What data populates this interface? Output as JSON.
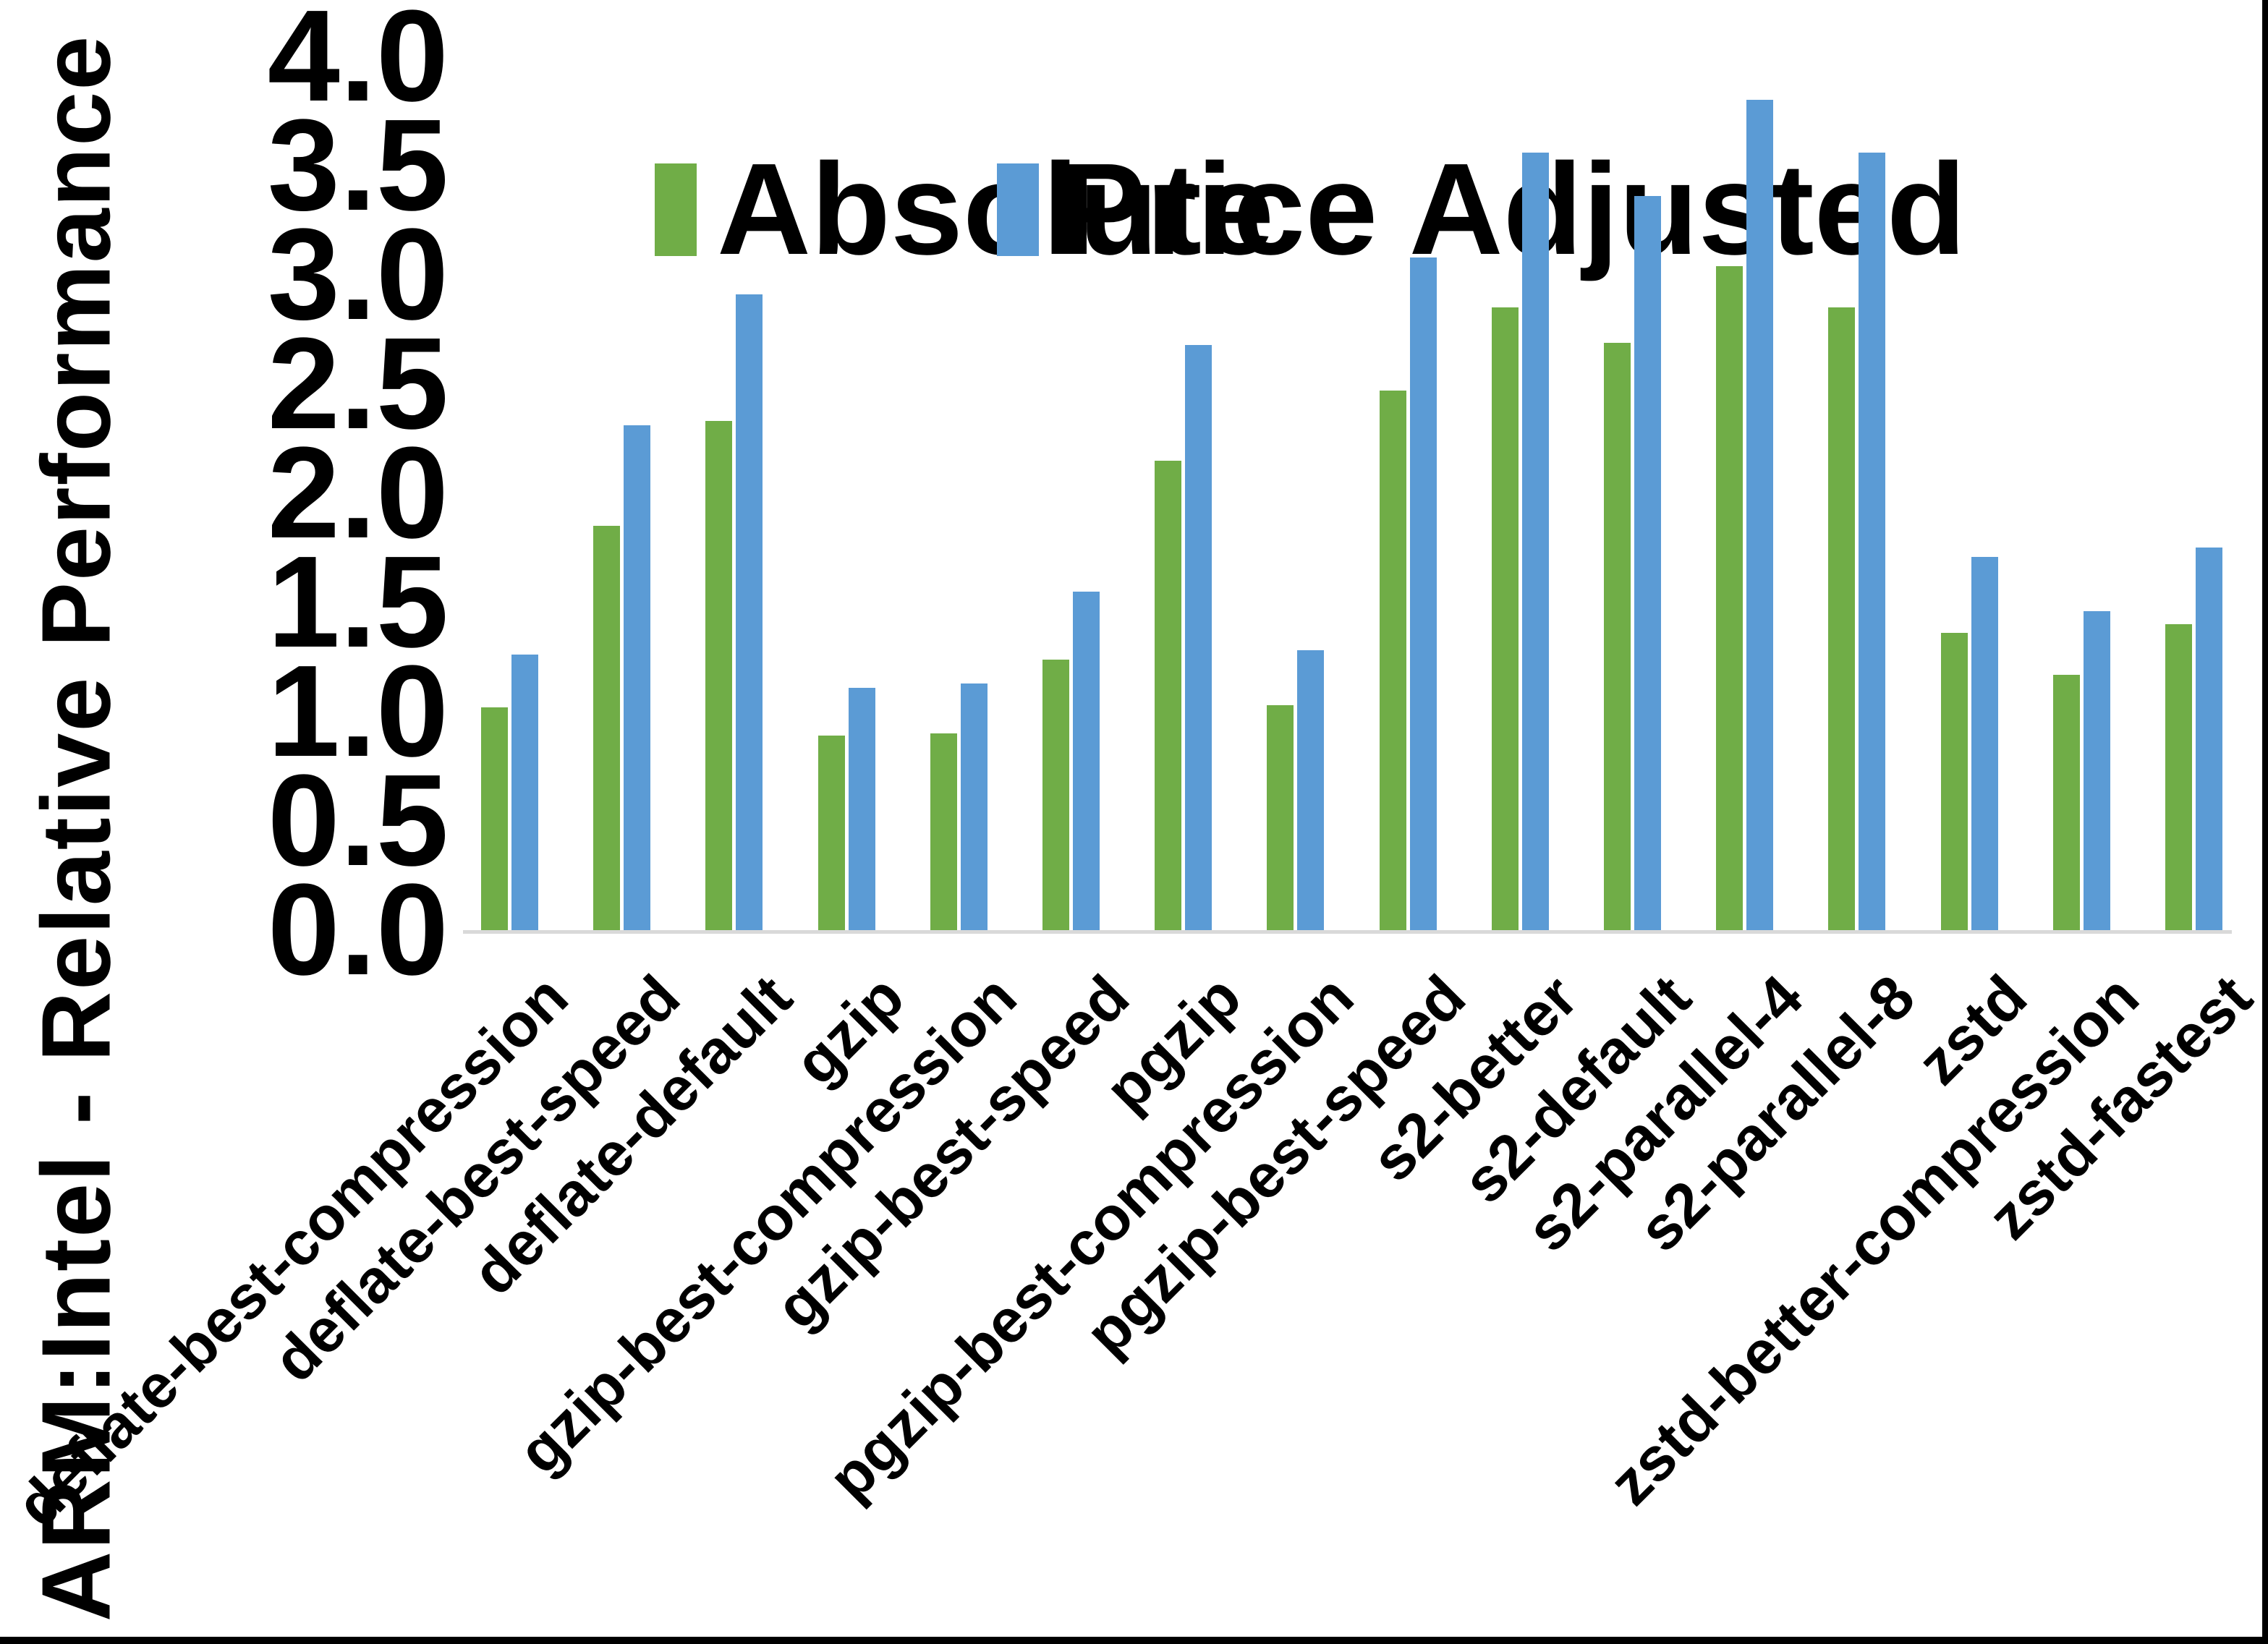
{
  "chart_data": {
    "type": "bar",
    "title": "",
    "xlabel": "",
    "ylabel": "ARM:Intel - Relative Performance",
    "ylim": [
      0,
      4
    ],
    "ytick_step": 0.5,
    "ytick_labels": [
      "0.0",
      "0.5",
      "1.0",
      "1.5",
      "2.0",
      "2.5",
      "3.0",
      "3.5",
      "4.0"
    ],
    "grid": false,
    "legend_position": "top-center",
    "categories": [
      "deflate-best-compression",
      "deflate-best-speed",
      "deflate-default",
      "gzip",
      "gzip-best-compression",
      "gzip-best-speed",
      "pgzip",
      "pgzip-best-compression",
      "pgzip-best-speed",
      "s2-better",
      "s2-default",
      "s2-parallel-4",
      "s2-parallel-8",
      "zstd",
      "zstd-better-compression",
      "zstd-fastest"
    ],
    "series": [
      {
        "name": "Absolute",
        "color": "#70AD47",
        "values": [
          1.02,
          1.85,
          2.33,
          0.89,
          0.9,
          1.24,
          2.15,
          1.03,
          2.47,
          2.85,
          2.69,
          3.04,
          2.85,
          1.36,
          1.17,
          1.4
        ]
      },
      {
        "name": "Price Adjusted",
        "color": "#5B9BD5",
        "values": [
          1.26,
          2.31,
          2.91,
          1.11,
          1.13,
          1.55,
          2.68,
          1.28,
          3.08,
          3.56,
          3.36,
          3.8,
          3.56,
          1.71,
          1.46,
          1.75
        ]
      }
    ],
    "colors": {
      "background": "#FFFFFF",
      "text": "#000000",
      "axis_line": "#D9D9D9",
      "frame_bars": "#000000"
    }
  }
}
